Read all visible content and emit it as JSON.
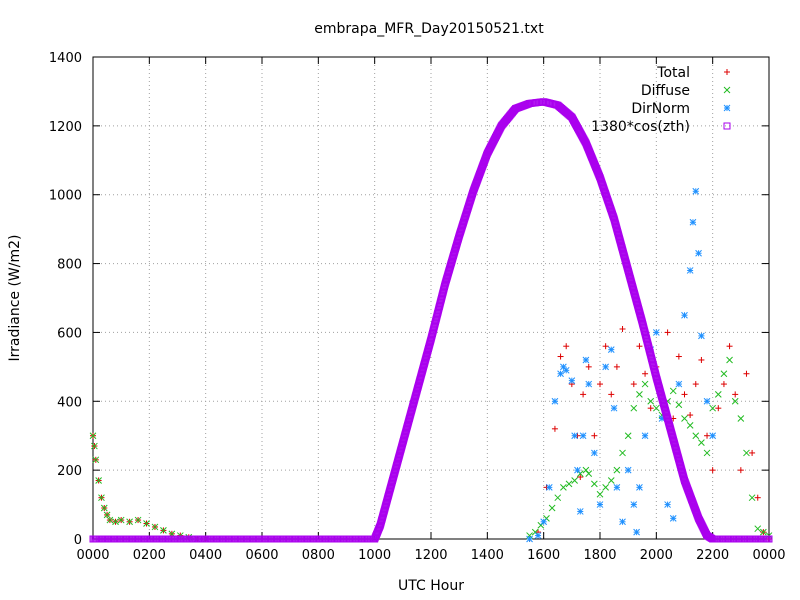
{
  "chart_data": {
    "type": "scatter",
    "title": "embrapa_MFR_Day20150521.txt",
    "xlabel": "UTC Hour",
    "ylabel": "Irradiance (W/m2)",
    "xlim": [
      0,
      2400
    ],
    "ylim": [
      0,
      1400
    ],
    "x_ticks": [
      "0000",
      "0200",
      "0400",
      "0600",
      "0800",
      "1000",
      "1200",
      "1400",
      "1600",
      "1800",
      "2000",
      "2200",
      "0000"
    ],
    "y_ticks": [
      "0",
      "200",
      "400",
      "600",
      "800",
      "1000",
      "1200",
      "1400"
    ],
    "grid": true,
    "legend_position": "top-right",
    "colors": {
      "total": "#dd0000",
      "diffuse": "#22bb22",
      "dirnorm": "#1e90ff",
      "cos": "#aa00ee"
    },
    "series": [
      {
        "name": "Total",
        "marker": "plus",
        "x": [
          0,
          5,
          10,
          20,
          30,
          40,
          50,
          60,
          80,
          100,
          130,
          160,
          190,
          220,
          250,
          280,
          310,
          340,
          370,
          400,
          1550,
          1580,
          1610,
          1640,
          1660,
          1680,
          1700,
          1720,
          1730,
          1740,
          1760,
          1780,
          1800,
          1820,
          1840,
          1860,
          1880,
          1900,
          1920,
          1940,
          1960,
          1980,
          2000,
          2020,
          2040,
          2060,
          2080,
          2100,
          2120,
          2140,
          2160,
          2180,
          2200,
          2220,
          2240,
          2260,
          2280,
          2300,
          2320,
          2340,
          2360,
          2380,
          2400
        ],
        "y": [
          300,
          270,
          230,
          170,
          120,
          90,
          70,
          55,
          50,
          55,
          50,
          55,
          45,
          35,
          25,
          15,
          10,
          5,
          0,
          0,
          0,
          20,
          150,
          320,
          530,
          560,
          450,
          300,
          180,
          420,
          500,
          300,
          450,
          560,
          420,
          500,
          610,
          770,
          450,
          560,
          480,
          380,
          500,
          420,
          600,
          350,
          530,
          420,
          360,
          450,
          520,
          300,
          200,
          380,
          450,
          560,
          420,
          200,
          480,
          250,
          120,
          20,
          0
        ]
      },
      {
        "name": "Diffuse",
        "marker": "cross",
        "x": [
          0,
          5,
          10,
          20,
          30,
          40,
          50,
          60,
          80,
          100,
          130,
          160,
          190,
          220,
          250,
          280,
          310,
          340,
          370,
          400,
          1550,
          1570,
          1590,
          1610,
          1630,
          1650,
          1670,
          1690,
          1710,
          1730,
          1750,
          1760,
          1780,
          1800,
          1820,
          1840,
          1860,
          1880,
          1900,
          1920,
          1940,
          1960,
          1980,
          2000,
          2020,
          2040,
          2060,
          2080,
          2100,
          2120,
          2140,
          2160,
          2180,
          2200,
          2220,
          2240,
          2260,
          2280,
          2300,
          2320,
          2340,
          2360,
          2380,
          2400
        ],
        "y": [
          300,
          270,
          230,
          170,
          120,
          90,
          70,
          55,
          50,
          55,
          50,
          55,
          45,
          35,
          25,
          15,
          10,
          5,
          0,
          0,
          10,
          20,
          40,
          60,
          90,
          120,
          150,
          160,
          170,
          190,
          200,
          190,
          160,
          130,
          150,
          170,
          200,
          250,
          300,
          380,
          420,
          450,
          400,
          380,
          360,
          400,
          430,
          390,
          350,
          330,
          300,
          280,
          250,
          380,
          420,
          480,
          520,
          400,
          350,
          250,
          120,
          30,
          20,
          10
        ]
      },
      {
        "name": "DirNorm",
        "marker": "star",
        "x": [
          1550,
          1580,
          1600,
          1620,
          1640,
          1660,
          1670,
          1680,
          1700,
          1710,
          1720,
          1730,
          1740,
          1750,
          1760,
          1780,
          1800,
          1820,
          1840,
          1850,
          1860,
          1880,
          1900,
          1920,
          1930,
          1940,
          1960,
          1980,
          2000,
          2020,
          2040,
          2060,
          2080,
          2100,
          2120,
          2130,
          2140,
          2150,
          2160,
          2180,
          2200
        ],
        "y": [
          0,
          10,
          50,
          150,
          400,
          480,
          500,
          490,
          460,
          300,
          200,
          80,
          300,
          520,
          450,
          250,
          100,
          500,
          550,
          380,
          150,
          50,
          200,
          100,
          20,
          150,
          300,
          550,
          600,
          350,
          100,
          60,
          450,
          650,
          780,
          920,
          1010,
          830,
          590,
          400,
          300
        ]
      },
      {
        "name": "1380*cos(zth)",
        "marker": "square",
        "x": [
          0,
          200,
          400,
          600,
          800,
          1000,
          1020,
          1050,
          1100,
          1150,
          1200,
          1250,
          1300,
          1350,
          1400,
          1450,
          1500,
          1550,
          1600,
          1650,
          1700,
          1750,
          1800,
          1850,
          1900,
          1950,
          2000,
          2050,
          2100,
          2150,
          2180,
          2200,
          2300,
          2400
        ],
        "y": [
          0,
          0,
          0,
          0,
          0,
          0,
          40,
          130,
          280,
          430,
          580,
          740,
          880,
          1010,
          1120,
          1200,
          1250,
          1265,
          1270,
          1260,
          1225,
          1150,
          1050,
          930,
          780,
          630,
          470,
          320,
          170,
          60,
          10,
          0,
          0,
          0
        ]
      }
    ]
  }
}
